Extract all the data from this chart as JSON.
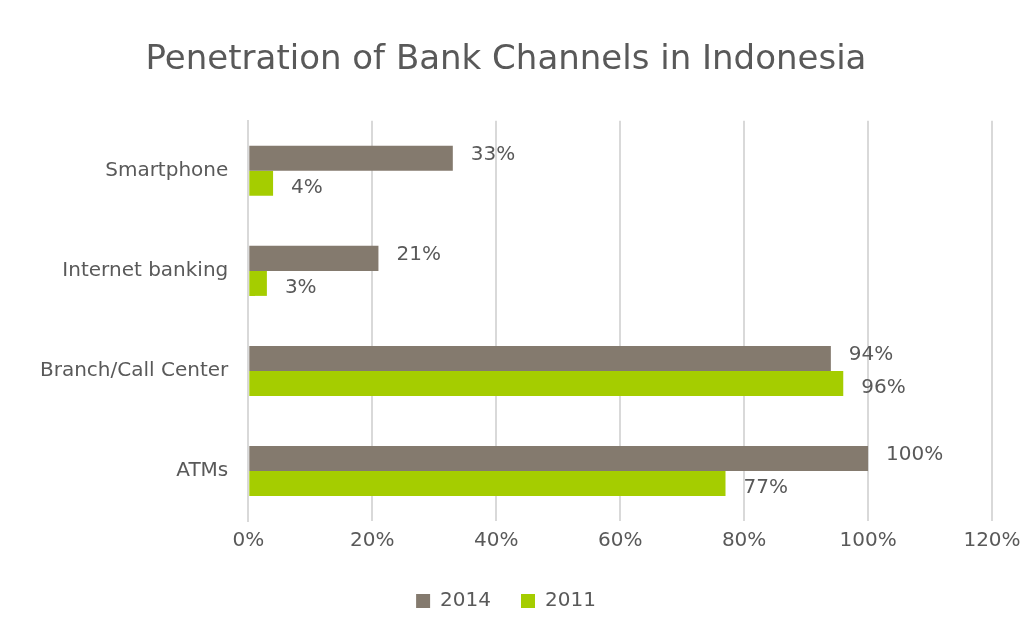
{
  "chart_data": {
    "type": "bar",
    "orientation": "horizontal",
    "title": "Penetration of Bank Channels in Indonesia",
    "categories": [
      "Smartphone",
      "Internet banking",
      "Branch/Call Center",
      "ATMs"
    ],
    "series": [
      {
        "name": "2014",
        "color": "#847a6e",
        "values": [
          33,
          21,
          94,
          100
        ],
        "value_labels": [
          "33%",
          "21%",
          "94%",
          "100%"
        ]
      },
      {
        "name": "2011",
        "color": "#a5cd00",
        "values": [
          4,
          3,
          96,
          77
        ],
        "value_labels": [
          "4%",
          "3%",
          "96%",
          "77%"
        ]
      }
    ],
    "xlim": [
      0,
      120
    ],
    "xticks": [
      {
        "value": 0,
        "label": "0%"
      },
      {
        "value": 20,
        "label": "20%"
      },
      {
        "value": 40,
        "label": "40%"
      },
      {
        "value": 60,
        "label": "60%"
      },
      {
        "value": 80,
        "label": "80%"
      },
      {
        "value": 100,
        "label": "100%"
      },
      {
        "value": 120,
        "label": "120%"
      }
    ],
    "grid": "x",
    "legend": "bottom"
  }
}
